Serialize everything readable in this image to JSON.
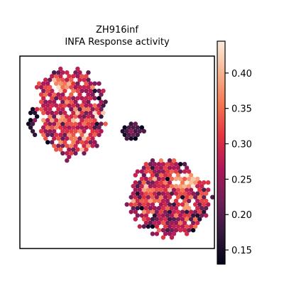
{
  "chart_data": {
    "type": "scatter",
    "title_line1": "ZH916inf",
    "title_line2": "INFA Response activity",
    "xlabel": "",
    "ylabel": "",
    "axes_ticks": false,
    "grid": false,
    "colorbar": {
      "label": "",
      "range": [
        0.13,
        0.445
      ],
      "ticks": [
        0.15,
        0.2,
        0.25,
        0.3,
        0.35,
        0.4
      ],
      "tick_labels": [
        "0.15",
        "0.20",
        "0.25",
        "0.30",
        "0.35",
        "0.40"
      ],
      "colormap": "rocket",
      "stops": [
        "#03051a",
        "#35193e",
        "#701f57",
        "#ad1759",
        "#e13342",
        "#f37651",
        "#f6b48f",
        "#faebdd"
      ]
    },
    "clusters": [
      {
        "name": "upper-left",
        "cx": 0.27,
        "cy": 0.7,
        "rx": 0.17,
        "ry": 0.22,
        "mean": 0.3,
        "spread": 0.06
      },
      {
        "name": "upper-left-head",
        "cx": 0.23,
        "cy": 0.83,
        "rx": 0.14,
        "ry": 0.08,
        "mean": 0.32,
        "spread": 0.06
      },
      {
        "name": "lower-right",
        "cx": 0.77,
        "cy": 0.26,
        "rx": 0.2,
        "ry": 0.19,
        "mean": 0.29,
        "spread": 0.06
      },
      {
        "name": "lower-right-hot",
        "cx": 0.84,
        "cy": 0.34,
        "rx": 0.09,
        "ry": 0.07,
        "mean": 0.39,
        "spread": 0.04
      },
      {
        "name": "middle-bridge",
        "cx": 0.58,
        "cy": 0.61,
        "rx": 0.06,
        "ry": 0.04,
        "mean": 0.2,
        "spread": 0.04
      },
      {
        "name": "left-outliers",
        "cx": 0.07,
        "cy": 0.66,
        "rx": 0.03,
        "ry": 0.07,
        "mean": 0.19,
        "spread": 0.04
      }
    ]
  }
}
